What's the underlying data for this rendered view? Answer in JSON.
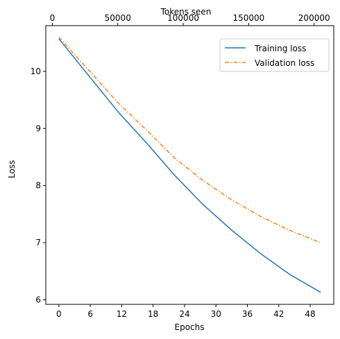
{
  "chart_data": {
    "type": "line",
    "xlabel": "Epochs",
    "ylabel": "Loss",
    "x2label": "Tokens seen",
    "xlim": [
      -2.5,
      52.5
    ],
    "ylim": [
      5.92,
      10.8
    ],
    "x2lim": [
      -5000,
      215000
    ],
    "xticks": [
      0,
      6,
      12,
      18,
      24,
      30,
      36,
      42,
      48
    ],
    "yticks": [
      6,
      7,
      8,
      9,
      10
    ],
    "x2ticks": [
      0,
      50000,
      100000,
      150000,
      200000
    ],
    "x": [
      0,
      6,
      11.5,
      17,
      22,
      27.5,
      33,
      38.5,
      44,
      50
    ],
    "series": [
      {
        "name": "Training loss",
        "color": "#1f77b4",
        "style": "solid",
        "values": [
          10.57,
          9.89,
          9.27,
          8.72,
          8.19,
          7.67,
          7.22,
          6.81,
          6.45,
          6.13
        ]
      },
      {
        "name": "Validation loss",
        "color": "#ff7f0e",
        "style": "dashdot",
        "values": [
          10.6,
          9.99,
          9.43,
          8.95,
          8.49,
          8.09,
          7.75,
          7.46,
          7.22,
          7.0
        ]
      }
    ],
    "legend": "top-right",
    "grid": false
  }
}
